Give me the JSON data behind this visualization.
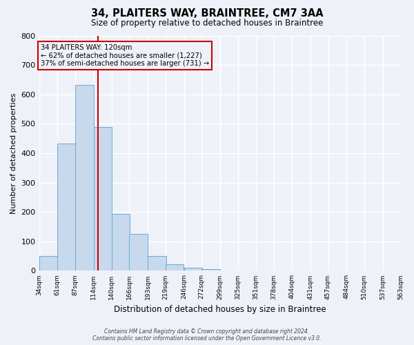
{
  "title": "34, PLAITERS WAY, BRAINTREE, CM7 3AA",
  "subtitle": "Size of property relative to detached houses in Braintree",
  "xlabel": "Distribution of detached houses by size in Braintree",
  "ylabel": "Number of detached properties",
  "bar_values": [
    50,
    433,
    633,
    490,
    193,
    126,
    50,
    23,
    10,
    5
  ],
  "bin_edges": [
    34,
    61,
    87,
    114,
    140,
    166,
    193,
    219,
    246,
    272,
    299
  ],
  "all_xtick_labels": [
    "34sqm",
    "61sqm",
    "87sqm",
    "114sqm",
    "140sqm",
    "166sqm",
    "193sqm",
    "219sqm",
    "246sqm",
    "272sqm",
    "299sqm",
    "325sqm",
    "351sqm",
    "378sqm",
    "404sqm",
    "431sqm",
    "457sqm",
    "484sqm",
    "510sqm",
    "537sqm",
    "563sqm"
  ],
  "all_xtick_positions": [
    34,
    61,
    87,
    114,
    140,
    166,
    193,
    219,
    246,
    272,
    299,
    325,
    351,
    378,
    404,
    431,
    457,
    484,
    510,
    537,
    563
  ],
  "ylim": [
    0,
    800
  ],
  "yticks": [
    0,
    100,
    200,
    300,
    400,
    500,
    600,
    700,
    800
  ],
  "xlim": [
    34,
    563
  ],
  "bar_color": "#c8d9ed",
  "bar_edge_color": "#6aaad4",
  "vline_x": 120,
  "vline_color": "#cc0000",
  "annotation_title": "34 PLAITERS WAY: 120sqm",
  "annotation_line1": "← 62% of detached houses are smaller (1,227)",
  "annotation_line2": "37% of semi-detached houses are larger (731) →",
  "annotation_box_color": "#cc0000",
  "background_color": "#eef2f8",
  "grid_color": "#ffffff",
  "footer1": "Contains HM Land Registry data © Crown copyright and database right 2024.",
  "footer2": "Contains public sector information licensed under the Open Government Licence v3.0."
}
